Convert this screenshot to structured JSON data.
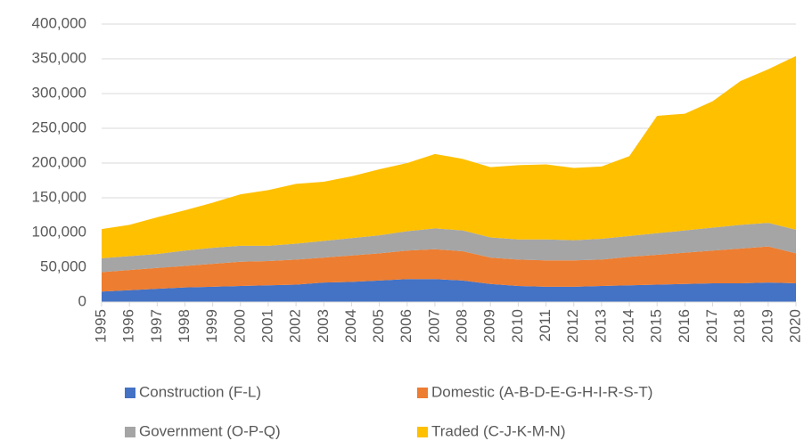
{
  "chart_data": {
    "type": "stacked-area",
    "categories": [
      "1995",
      "1996",
      "1997",
      "1998",
      "1999",
      "2000",
      "2001",
      "2002",
      "2003",
      "2004",
      "2005",
      "2006",
      "2007",
      "2008",
      "2009",
      "2010",
      "2011",
      "2012",
      "2013",
      "2014",
      "2015",
      "2016",
      "2017",
      "2018",
      "2019",
      "2020"
    ],
    "series": [
      {
        "name": "Construction (F-L)",
        "color": "#4472c4",
        "values": [
          15000,
          17000,
          19000,
          21000,
          22000,
          23000,
          24000,
          25000,
          28000,
          29000,
          31000,
          33000,
          33000,
          31000,
          26000,
          23000,
          22000,
          22000,
          23000,
          24000,
          25000,
          26000,
          27000,
          27000,
          28000,
          27000
        ]
      },
      {
        "name": "Domestic (A-B-D-E-G-H-I-R-S-T)",
        "color": "#ed7d31",
        "values": [
          28000,
          29000,
          30000,
          31000,
          33000,
          35000,
          35000,
          36000,
          36000,
          38000,
          39000,
          41000,
          43000,
          42000,
          38000,
          38000,
          38000,
          38000,
          38000,
          41000,
          43000,
          45000,
          47000,
          50000,
          52000,
          43000
        ]
      },
      {
        "name": "Government (O-P-Q)",
        "color": "#a5a5a5",
        "values": [
          20000,
          20000,
          20000,
          22000,
          23000,
          23000,
          22000,
          23000,
          24000,
          25000,
          26000,
          28000,
          30000,
          30000,
          29000,
          29000,
          30000,
          29000,
          30000,
          30000,
          31000,
          32000,
          33000,
          34000,
          34000,
          34000
        ]
      },
      {
        "name": "Traded (C-J-K-M-N)",
        "color": "#ffc000",
        "values": [
          42000,
          45000,
          53000,
          58000,
          65000,
          74000,
          80000,
          86000,
          85000,
          89000,
          95000,
          98000,
          107000,
          103000,
          101000,
          107000,
          108000,
          104000,
          104000,
          115000,
          169000,
          168000,
          182000,
          207000,
          221000,
          250000
        ]
      }
    ],
    "ylim": [
      0,
      400000
    ],
    "yticks": [
      0,
      {
        "value": 50000,
        "label": "50,000"
      },
      {
        "value": 100000,
        "label": "100,000"
      },
      {
        "value": 150000,
        "label": "150,000"
      },
      {
        "value": 200000,
        "label": "200,000"
      },
      {
        "value": 250000,
        "label": "250,000"
      },
      {
        "value": 300000,
        "label": "300,000"
      },
      {
        "value": 350000,
        "label": "350,000"
      },
      {
        "value": 400000,
        "label": "400,000"
      }
    ],
    "grid": true
  }
}
